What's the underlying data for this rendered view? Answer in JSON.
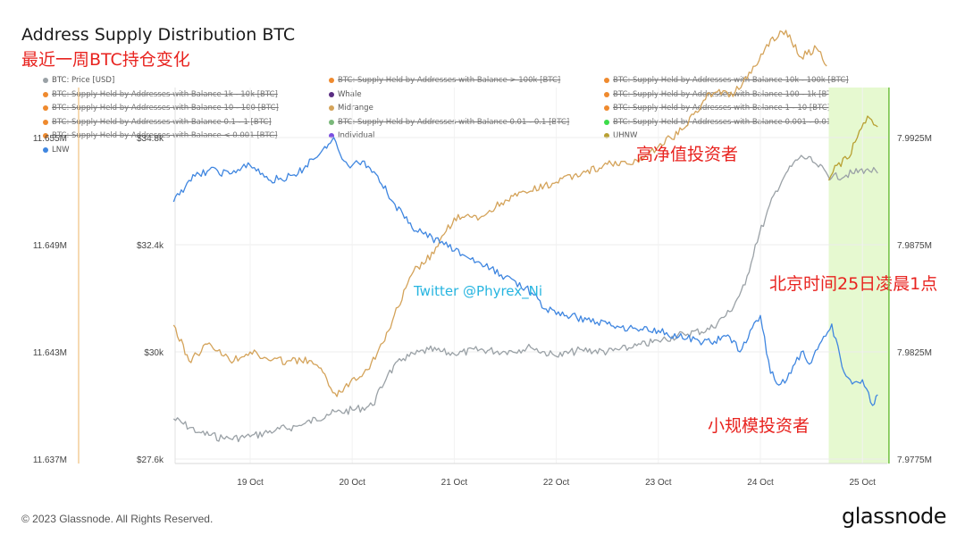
{
  "chart_data": {
    "type": "line",
    "title": "Address Supply Distribution BTC",
    "subtitle": "最近一周BTC持仓变化",
    "x_labels": [
      "19 Oct",
      "20 Oct",
      "21 Oct",
      "22 Oct",
      "23 Oct",
      "24 Oct",
      "25 Oct"
    ],
    "x_range": [
      18.25,
      25.35
    ],
    "left_axis_outer": {
      "ticks": [
        "11.655M",
        "11.649M",
        "11.643M",
        "11.637M"
      ],
      "range": [
        11.637,
        11.655
      ]
    },
    "left_axis_inner": {
      "ticks": [
        "$34.8k",
        "$32.4k",
        "$30k",
        "$27.6k"
      ],
      "range": [
        27.6,
        34.8
      ]
    },
    "right_axis": {
      "ticks": [
        "7.9925M",
        "7.9875M",
        "7.9825M",
        "7.9775M"
      ],
      "range": [
        7.9775,
        7.9925
      ]
    },
    "highlight": {
      "x_start": 24.67,
      "x_end": 25.26,
      "color": "#e6f9d0"
    },
    "legend": [
      {
        "label": "BTC: Price [USD]",
        "color": "#9aa1a6",
        "struck": false
      },
      {
        "label": "BTC: Supply Held by Addresses with Balance > 100k [BTC]",
        "color": "#ef8a2e",
        "struck": true
      },
      {
        "label": "BTC: Supply Held by Addresses with Balance 10k - 100k [BTC]",
        "color": "#ef8a2e",
        "struck": true
      },
      {
        "label": "BTC: Supply Held by Addresses with Balance 1k - 10k [BTC]",
        "color": "#ef8a2e",
        "struck": true
      },
      {
        "label": "Whale",
        "color": "#5a2d82",
        "struck": false
      },
      {
        "label": "BTC: Supply Held by Addresses with Balance 100 - 1k [BTC]",
        "color": "#ef8a2e",
        "struck": true
      },
      {
        "label": "BTC: Supply Held by Addresses with Balance 10 - 100 [BTC]",
        "color": "#ef8a2e",
        "struck": true
      },
      {
        "label": "Midrange",
        "color": "#d4a35a",
        "struck": false
      },
      {
        "label": "BTC: Supply Held by Addresses with Balance 1 - 10 [BTC]",
        "color": "#ef8a2e",
        "struck": true
      },
      {
        "label": "BTC: Supply Held by Addresses with Balance 0.1 - 1 [BTC]",
        "color": "#ef8a2e",
        "struck": true
      },
      {
        "label": "BTC: Supply Held by Addresses with Balance 0.01 - 0.1 [BTC]",
        "color": "#7ab87a",
        "struck": true
      },
      {
        "label": "BTC: Supply Held by Addresses with Balance 0.001 - 0.01 [BTC]",
        "color": "#3ddc4a",
        "struck": true
      },
      {
        "label": "BTC: Supply Held by Addresses with Balance < 0.001 [BTC]",
        "color": "#ef8a2e",
        "struck": true
      },
      {
        "label": "Individual",
        "color": "#7a4fe0",
        "struck": false
      },
      {
        "label": "UHNW",
        "color": "#b8a032",
        "struck": false
      },
      {
        "label": "LNW",
        "color": "#3f86e0",
        "struck": false
      }
    ],
    "series": [
      {
        "name": "BTC: Price [USD]",
        "axis": "left_axis_inner",
        "color": "#9aa1a6",
        "x": [
          18.25,
          18.5,
          18.75,
          19.0,
          19.25,
          19.5,
          19.75,
          20.0,
          20.2,
          20.35,
          20.5,
          20.75,
          21.0,
          21.25,
          21.5,
          21.75,
          22.0,
          22.25,
          22.5,
          22.75,
          23.0,
          23.25,
          23.5,
          23.7,
          23.85,
          23.95,
          24.05,
          24.15,
          24.25,
          24.4,
          24.55,
          24.7,
          24.9,
          25.05,
          25.15
        ],
        "y": [
          28.5,
          28.2,
          28.05,
          28.1,
          28.25,
          28.35,
          28.6,
          28.7,
          28.8,
          29.5,
          29.85,
          30.05,
          29.95,
          30.05,
          30.0,
          30.1,
          29.9,
          30.05,
          30.0,
          30.1,
          30.25,
          30.4,
          30.5,
          30.9,
          31.5,
          32.4,
          33.0,
          33.6,
          34.0,
          34.4,
          34.2,
          33.9,
          34.0,
          34.1,
          34.0
        ]
      },
      {
        "name": "UHNW",
        "axis": "right_axis",
        "color": "#b8a032",
        "x": [
          24.67,
          24.75,
          24.85,
          24.95,
          25.05,
          25.15
        ],
        "y": [
          7.9905,
          7.9912,
          7.9915,
          7.9925,
          7.9935,
          7.993
        ]
      },
      {
        "name": "Midrange",
        "axis": "left_axis_outer",
        "color": "#d4a35a",
        "x": [
          18.25,
          18.4,
          18.6,
          18.8,
          19.0,
          19.2,
          19.4,
          19.6,
          19.75,
          19.85,
          20.0,
          20.15,
          20.3,
          20.45,
          20.6,
          20.8,
          21.0,
          21.25,
          21.5,
          21.75,
          22.0,
          22.25,
          22.5,
          22.75,
          23.0,
          23.25,
          23.5,
          23.75,
          23.95,
          24.1,
          24.25,
          24.4,
          24.55,
          24.65
        ],
        "y": [
          11.6445,
          11.6425,
          11.6435,
          11.6425,
          11.643,
          11.6425,
          11.6425,
          11.6425,
          11.6415,
          11.6405,
          11.6415,
          11.642,
          11.6435,
          11.6455,
          11.6475,
          11.6485,
          11.6505,
          11.6505,
          11.6515,
          11.652,
          11.6525,
          11.653,
          11.6535,
          11.6535,
          11.6545,
          11.6555,
          11.6575,
          11.6575,
          11.659,
          11.6605,
          11.661,
          11.6595,
          11.66,
          11.659
        ]
      },
      {
        "name": "LNW",
        "axis": "right_axis",
        "color": "#3f86e0",
        "x": [
          18.25,
          18.4,
          18.6,
          18.8,
          19.0,
          19.2,
          19.45,
          19.6,
          19.75,
          19.82,
          19.9,
          20.0,
          20.1,
          20.25,
          20.4,
          20.55,
          20.7,
          20.9,
          21.1,
          21.3,
          21.5,
          21.7,
          21.9,
          22.1,
          22.3,
          22.5,
          22.75,
          23.0,
          23.2,
          23.4,
          23.55,
          23.7,
          23.8,
          23.9,
          24.0,
          24.1,
          24.2,
          24.3,
          24.4,
          24.5,
          24.6,
          24.7,
          24.8,
          24.9,
          25.0,
          25.1,
          25.15
        ],
        "y": [
          7.9895,
          7.9905,
          7.991,
          7.9908,
          7.9912,
          7.9905,
          7.9907,
          7.9915,
          7.992,
          7.9925,
          7.9915,
          7.9912,
          7.9914,
          7.9907,
          7.9895,
          7.9885,
          7.988,
          7.9875,
          7.987,
          7.9865,
          7.986,
          7.9855,
          7.9845,
          7.9842,
          7.984,
          7.9838,
          7.9836,
          7.9835,
          7.9832,
          7.983,
          7.983,
          7.9832,
          7.9825,
          7.9835,
          7.9842,
          7.9815,
          7.981,
          7.9815,
          7.9825,
          7.982,
          7.983,
          7.9838,
          7.9818,
          7.981,
          7.9812,
          7.98,
          7.9805
        ]
      }
    ],
    "annotations": {
      "uhnw_label": "高净值投资者",
      "time_label": "北京时间25日凌晨1点",
      "lnw_label": "小规模投资者",
      "watermark": "Twitter @Phyrex_Ni"
    }
  },
  "footer": {
    "copyright": "© 2023 Glassnode. All Rights Reserved.",
    "logo": "glassnode"
  }
}
